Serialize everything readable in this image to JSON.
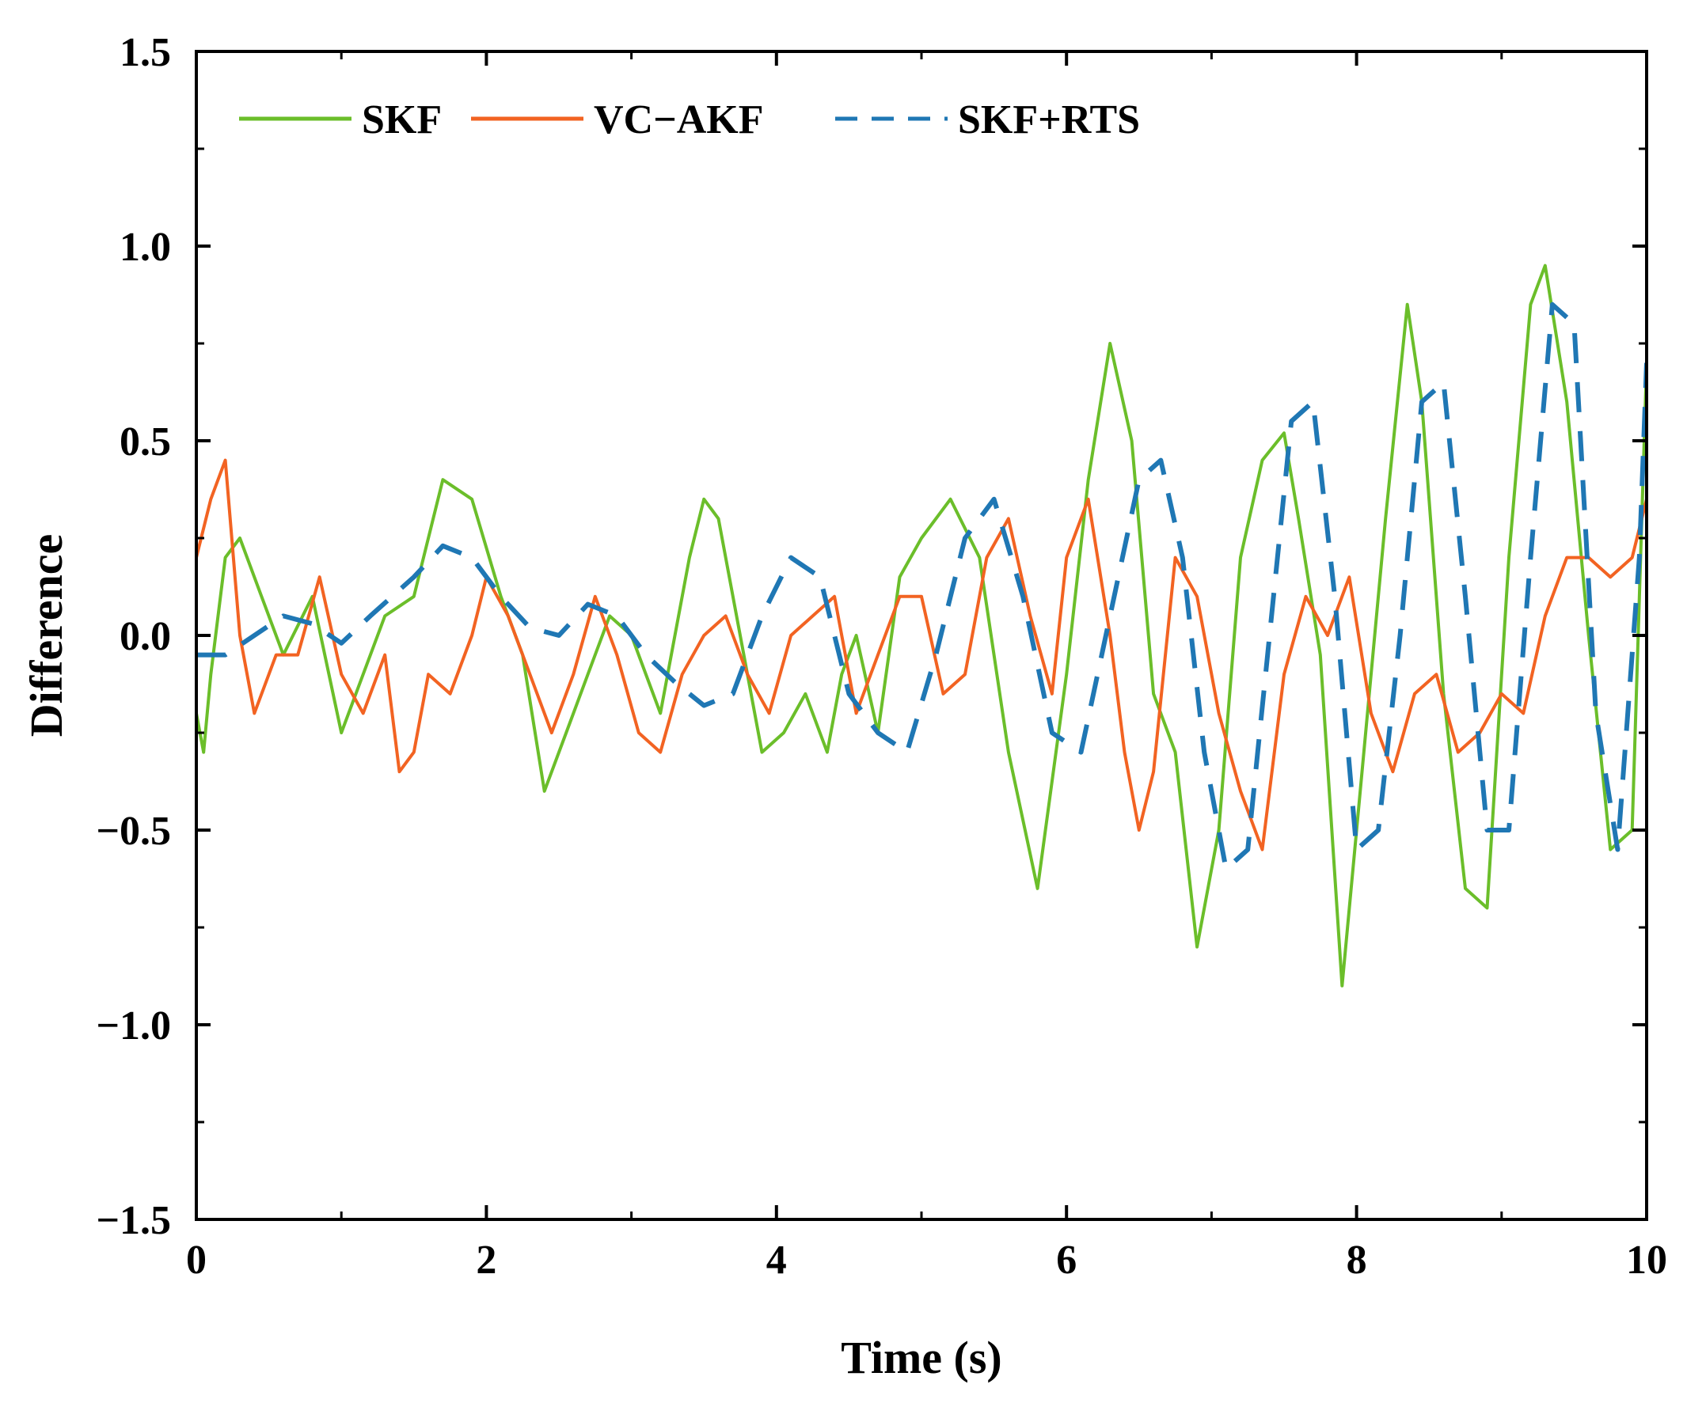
{
  "chart_data": {
    "type": "line",
    "title": "",
    "xlabel": "Time (s)",
    "ylabel": "Difference",
    "xlim": [
      0,
      10
    ],
    "ylim": [
      -1.5,
      1.5
    ],
    "xticks": [
      0,
      2,
      4,
      6,
      8,
      10
    ],
    "xtick_labels": [
      "0",
      "2",
      "4",
      "6",
      "8",
      "10"
    ],
    "yticks": [
      1.5,
      1.0,
      0.5,
      0.0,
      -0.5,
      -1.0,
      -1.5
    ],
    "ytick_labels": [
      "1.5",
      "1.0",
      "0.5",
      "0.0",
      "−0.5",
      "−1.0",
      "−1.5"
    ],
    "grid": false,
    "legend_position": "top-left",
    "series": [
      {
        "name": "SKF",
        "color": "#6BBE2A",
        "style": "solid",
        "x": [
          0,
          0.05,
          0.1,
          0.2,
          0.3,
          0.45,
          0.6,
          0.8,
          1.0,
          1.15,
          1.3,
          1.5,
          1.7,
          1.9,
          2.1,
          2.25,
          2.4,
          2.55,
          2.7,
          2.85,
          3.0,
          3.2,
          3.4,
          3.5,
          3.6,
          3.75,
          3.9,
          4.05,
          4.2,
          4.35,
          4.45,
          4.55,
          4.7,
          4.85,
          5.0,
          5.2,
          5.4,
          5.6,
          5.8,
          6.0,
          6.15,
          6.3,
          6.45,
          6.6,
          6.75,
          6.9,
          7.05,
          7.2,
          7.35,
          7.5,
          7.6,
          7.75,
          7.9,
          8.05,
          8.2,
          8.35,
          8.45,
          8.6,
          8.75,
          8.9,
          9.05,
          9.2,
          9.3,
          9.45,
          9.6,
          9.75,
          9.9,
          10.0
        ],
        "y": [
          -0.2,
          -0.3,
          -0.1,
          0.2,
          0.25,
          0.1,
          -0.05,
          0.1,
          -0.25,
          -0.1,
          0.05,
          0.1,
          0.4,
          0.35,
          0.1,
          -0.05,
          -0.4,
          -0.25,
          -0.1,
          0.05,
          0.0,
          -0.2,
          0.2,
          0.35,
          0.3,
          0.0,
          -0.3,
          -0.25,
          -0.15,
          -0.3,
          -0.1,
          0.0,
          -0.25,
          0.15,
          0.25,
          0.35,
          0.2,
          -0.3,
          -0.65,
          -0.1,
          0.4,
          0.75,
          0.5,
          -0.15,
          -0.3,
          -0.8,
          -0.5,
          0.2,
          0.45,
          0.52,
          0.3,
          -0.05,
          -0.9,
          -0.3,
          0.3,
          0.85,
          0.6,
          -0.15,
          -0.65,
          -0.7,
          0.2,
          0.85,
          0.95,
          0.6,
          0.0,
          -0.55,
          -0.5,
          0.7
        ]
      },
      {
        "name": "VC−AKF",
        "color": "#F26322",
        "style": "solid",
        "x": [
          0,
          0.1,
          0.2,
          0.3,
          0.4,
          0.55,
          0.7,
          0.85,
          1.0,
          1.15,
          1.3,
          1.4,
          1.5,
          1.6,
          1.75,
          1.9,
          2.0,
          2.15,
          2.3,
          2.45,
          2.6,
          2.75,
          2.9,
          3.05,
          3.2,
          3.35,
          3.5,
          3.65,
          3.8,
          3.95,
          4.1,
          4.25,
          4.4,
          4.55,
          4.7,
          4.85,
          5.0,
          5.15,
          5.3,
          5.45,
          5.6,
          5.75,
          5.9,
          6.0,
          6.15,
          6.3,
          6.4,
          6.5,
          6.6,
          6.75,
          6.9,
          7.05,
          7.2,
          7.35,
          7.5,
          7.65,
          7.8,
          7.95,
          8.1,
          8.25,
          8.4,
          8.55,
          8.7,
          8.85,
          9.0,
          9.15,
          9.3,
          9.45,
          9.6,
          9.75,
          9.9,
          10.0
        ],
        "y": [
          0.2,
          0.35,
          0.45,
          0.0,
          -0.2,
          -0.05,
          -0.05,
          0.15,
          -0.1,
          -0.2,
          -0.05,
          -0.35,
          -0.3,
          -0.1,
          -0.15,
          0.0,
          0.15,
          0.05,
          -0.1,
          -0.25,
          -0.1,
          0.1,
          -0.05,
          -0.25,
          -0.3,
          -0.1,
          0.0,
          0.05,
          -0.1,
          -0.2,
          0.0,
          0.05,
          0.1,
          -0.2,
          -0.05,
          0.1,
          0.1,
          -0.15,
          -0.1,
          0.2,
          0.3,
          0.05,
          -0.15,
          0.2,
          0.35,
          0.0,
          -0.3,
          -0.5,
          -0.35,
          0.2,
          0.1,
          -0.2,
          -0.4,
          -0.55,
          -0.1,
          0.1,
          0.0,
          0.15,
          -0.2,
          -0.35,
          -0.15,
          -0.1,
          -0.3,
          -0.25,
          -0.15,
          -0.2,
          0.05,
          0.2,
          0.2,
          0.15,
          0.2,
          0.35
        ]
      },
      {
        "name": "SKF+RTS",
        "color": "#1F77B4",
        "style": "dashed",
        "x": [
          0,
          0.2,
          0.4,
          0.6,
          0.8,
          1.0,
          1.2,
          1.5,
          1.7,
          1.9,
          2.1,
          2.3,
          2.5,
          2.7,
          2.9,
          3.1,
          3.3,
          3.5,
          3.7,
          3.9,
          4.1,
          4.3,
          4.5,
          4.7,
          4.9,
          5.1,
          5.3,
          5.5,
          5.7,
          5.9,
          6.1,
          6.3,
          6.5,
          6.65,
          6.8,
          6.95,
          7.1,
          7.25,
          7.4,
          7.55,
          7.7,
          7.85,
          8.0,
          8.15,
          8.3,
          8.45,
          8.6,
          8.75,
          8.9,
          9.05,
          9.2,
          9.35,
          9.5,
          9.65,
          9.8,
          9.95,
          10.0
        ],
        "y": [
          -0.05,
          -0.05,
          0.0,
          0.05,
          0.03,
          -0.02,
          0.05,
          0.15,
          0.23,
          0.2,
          0.1,
          0.02,
          0.0,
          0.08,
          0.05,
          -0.05,
          -0.12,
          -0.18,
          -0.15,
          0.05,
          0.2,
          0.15,
          -0.15,
          -0.25,
          -0.3,
          -0.05,
          0.25,
          0.35,
          0.1,
          -0.25,
          -0.3,
          0.05,
          0.4,
          0.45,
          0.2,
          -0.3,
          -0.6,
          -0.55,
          0.0,
          0.55,
          0.6,
          0.1,
          -0.55,
          -0.5,
          0.0,
          0.6,
          0.65,
          0.1,
          -0.5,
          -0.5,
          0.2,
          0.85,
          0.8,
          -0.2,
          -0.55,
          0.2,
          0.7
        ]
      }
    ]
  }
}
